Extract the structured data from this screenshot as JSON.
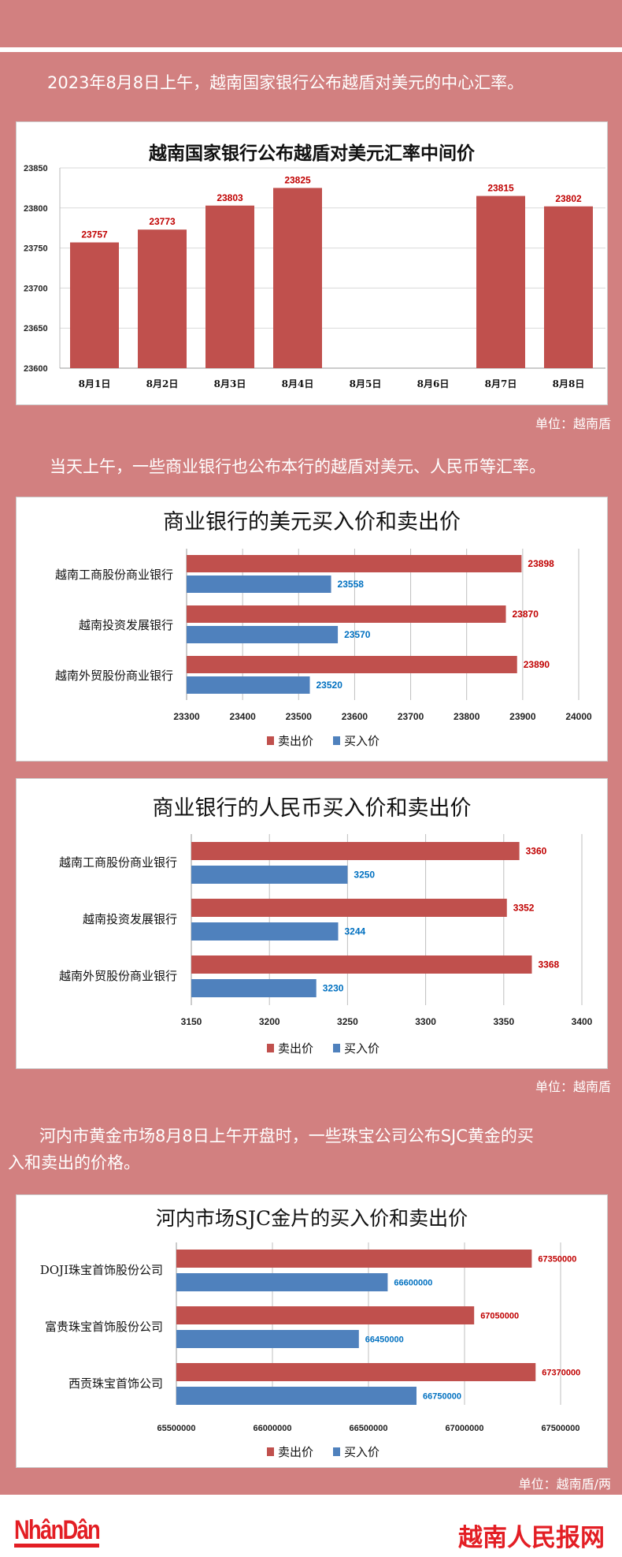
{
  "colors": {
    "background": "#d28080",
    "sell": "#c0504d",
    "buy": "#4f81bd",
    "sell_label": "#c00000",
    "buy_label": "#0070c0",
    "logo": "#e31e24"
  },
  "section1": {
    "text": "2023年8月8日上午，越南国家银行公布越盾对美元的中心汇率。",
    "unit": "单位：越南盾"
  },
  "section2": {
    "text": "当天上午，一些商业银行也公布本行的越盾对美元、人民币等汇率。",
    "unit": "单位：越南盾"
  },
  "section3": {
    "text_line1": "河内市黄金市场8月8日上午开盘时，一些珠宝公司公布SJC黄金的买",
    "text_line2": "入和卖出的价格。",
    "unit": "单位：越南盾/两"
  },
  "footer": {
    "logo_left": "NhânDân",
    "logo_right": "越南人民报网"
  },
  "chart_data": [
    {
      "type": "bar",
      "title": "越南国家银行公布越盾对美元汇率中间价",
      "categories": [
        "8月1日",
        "8月2日",
        "8月3日",
        "8月4日",
        "8月5日",
        "8月6日",
        "8月7日",
        "8月8日"
      ],
      "values": [
        23757,
        23773,
        23803,
        23825,
        null,
        null,
        23815,
        23802
      ],
      "labels": [
        "23757",
        "23773",
        "23803",
        "23825",
        "",
        "",
        "23815",
        "23802"
      ],
      "ylim": [
        23600,
        23850
      ],
      "yticks": [
        "23600",
        "23650",
        "23700",
        "23750",
        "23800",
        "23850"
      ],
      "grid": true
    },
    {
      "type": "bar-horizontal",
      "title": "商业银行的美元买入价和卖出价",
      "categories": [
        "越南工商股份商业银行",
        "越南投资发展银行",
        "越南外贸股份商业银行"
      ],
      "series": [
        {
          "name": "卖出价",
          "values": [
            23898,
            23870,
            23890
          ],
          "labels": [
            "23898",
            "23870",
            "23890"
          ]
        },
        {
          "name": "买入价",
          "values": [
            23558,
            23570,
            23520
          ],
          "labels": [
            "23558",
            "23570",
            "23520"
          ]
        }
      ],
      "xlim": [
        23300,
        24000
      ],
      "xticks": [
        "23300",
        "23400",
        "23500",
        "23600",
        "23700",
        "23800",
        "23900",
        "24000"
      ],
      "legend": "bottom",
      "grid": true
    },
    {
      "type": "bar-horizontal",
      "title": "商业银行的人民币买入价和卖出价",
      "categories": [
        "越南工商股份商业银行",
        "越南投资发展银行",
        "越南外贸股份商业银行"
      ],
      "series": [
        {
          "name": "卖出价",
          "values": [
            3360,
            3352,
            3368
          ],
          "labels": [
            "3360",
            "3352",
            "3368"
          ]
        },
        {
          "name": "买入价",
          "values": [
            3250,
            3244,
            3230
          ],
          "labels": [
            "3250",
            "3244",
            "3230"
          ]
        }
      ],
      "xlim": [
        3150,
        3400
      ],
      "xticks": [
        "3150",
        "3200",
        "3250",
        "3300",
        "3350",
        "3400"
      ],
      "legend": "bottom",
      "grid": true
    },
    {
      "type": "bar-horizontal",
      "title": "河内市场SJC金片的买入价和卖出价",
      "categories": [
        "DOJI珠宝首饰股份公司",
        "富贵珠宝首饰股份公司",
        "西贡珠宝首饰公司"
      ],
      "series": [
        {
          "name": "卖出价",
          "values": [
            67350000,
            67050000,
            67370000
          ],
          "labels": [
            "67350000",
            "67050000",
            "67370000"
          ]
        },
        {
          "name": "买入价",
          "values": [
            66600000,
            66450000,
            66750000
          ],
          "labels": [
            "66600000",
            "66450000",
            "66750000"
          ]
        }
      ],
      "xlim": [
        65500000,
        67500000
      ],
      "xticks": [
        "65500000",
        "66000000",
        "66500000",
        "67000000",
        "67500000"
      ],
      "legend": "bottom",
      "grid": true
    }
  ]
}
